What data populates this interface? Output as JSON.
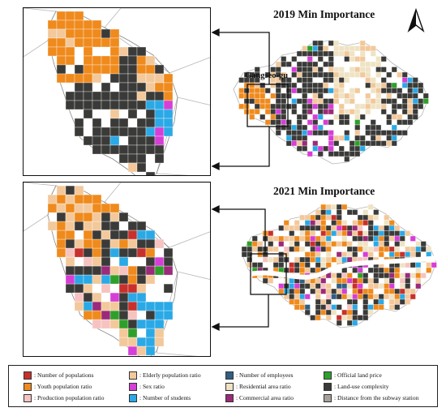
{
  "titles": {
    "map_2019": "2019 Min Importance",
    "map_2021": "2021 Min Importance",
    "district": "Gangseo-gu"
  },
  "north_arrow": {
    "icon": "north-arrow-icon"
  },
  "colors": {
    "number_of_populations": "#c8302c",
    "youth_population_ratio": "#ef8a1c",
    "production_population_ratio": "#f6c3c0",
    "elderly_population_ratio": "#f3c89a",
    "sex_ratio": "#d63ed6",
    "number_of_students": "#2aa9e6",
    "number_of_employees": "#2f5f85",
    "residential_area_ratio": "#efe3c4",
    "commercial_area_ratio": "#9b2a7a",
    "official_land_price": "#2ea02a",
    "land_use_complexity": "#3a3a38",
    "distance_from_subway_station": "#a7a19c"
  },
  "legend": [
    {
      "key": "number_of_populations",
      "label": ": Number of populations"
    },
    {
      "key": "youth_population_ratio",
      "label": ": Youth population ratio"
    },
    {
      "key": "production_population_ratio",
      "label": ": Production population ratio"
    },
    {
      "key": "elderly_population_ratio",
      "label": ": Elderly population ratio"
    },
    {
      "key": "sex_ratio",
      "label": ": Sex ratio"
    },
    {
      "key": "number_of_students",
      "label": ": Number of students"
    },
    {
      "key": "number_of_employees",
      "label": ": Number of employees"
    },
    {
      "key": "residential_area_ratio",
      "label": ": Residential area ratio"
    },
    {
      "key": "commercial_area_ratio",
      "label": ": Commercial area ratio"
    },
    {
      "key": "official_land_price",
      "label": ": Official land price"
    },
    {
      "key": "land_use_complexity",
      "label": ": Land-use complexity"
    },
    {
      "key": "distance_from_subway_station",
      "label": ": Distance from the subway station"
    }
  ]
}
